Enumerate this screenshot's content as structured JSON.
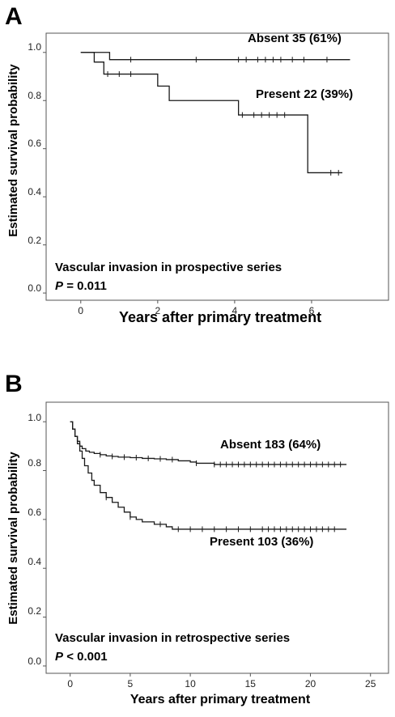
{
  "chart_data": [
    {
      "panel": "A",
      "type": "line",
      "step": true,
      "xlabel": "Years after primary treatment",
      "ylabel": "Estimated survival probability",
      "xlim": [
        -0.9,
        8.0
      ],
      "ylim": [
        -0.03,
        1.08
      ],
      "xticks": [
        0,
        2,
        4,
        6
      ],
      "yticks": [
        0.0,
        0.2,
        0.4,
        0.6,
        0.8,
        1.0
      ],
      "ytick_labels": [
        "0.0",
        "0.2",
        "0.4",
        "0.6",
        "0.8",
        "1.0"
      ],
      "grid": false,
      "annotation": {
        "line1": "Vascular invasion in prospective series",
        "p_label": "P",
        "p_value": "= 0.011"
      },
      "series": [
        {
          "name": "Absent 35 (61%)",
          "x": [
            0,
            0.75,
            0.75,
            7.0
          ],
          "y": [
            1.0,
            1.0,
            0.97,
            0.97
          ],
          "censored_x": [
            1.3,
            3.0,
            4.1,
            4.3,
            4.6,
            4.8,
            5.0,
            5.2,
            5.5,
            5.8,
            6.4
          ]
        },
        {
          "name": "Present 22 (39%)",
          "x": [
            0,
            0.35,
            0.35,
            0.6,
            0.6,
            1.3,
            1.3,
            2.0,
            2.0,
            2.3,
            2.3,
            4.1,
            4.1,
            5.9,
            5.9,
            6.8
          ],
          "y": [
            1.0,
            1.0,
            0.96,
            0.96,
            0.91,
            0.91,
            0.91,
            0.91,
            0.86,
            0.86,
            0.8,
            0.8,
            0.74,
            0.74,
            0.5,
            0.5
          ],
          "censored_x": [
            0.7,
            1.0,
            1.3,
            4.2,
            4.5,
            4.7,
            4.9,
            5.1,
            5.3,
            6.5,
            6.7
          ]
        }
      ]
    },
    {
      "panel": "B",
      "type": "line",
      "step": true,
      "xlabel": "Years after primary treatment",
      "ylabel": "Estimated survival probability",
      "xlim": [
        -2.0,
        26.5
      ],
      "ylim": [
        -0.03,
        1.08
      ],
      "xticks": [
        0,
        5,
        10,
        15,
        20,
        25
      ],
      "yticks": [
        0.0,
        0.2,
        0.4,
        0.6,
        0.8,
        1.0
      ],
      "ytick_labels": [
        "0.0",
        "0.2",
        "0.4",
        "0.6",
        "0.8",
        "1.0"
      ],
      "grid": false,
      "annotation": {
        "line1": "Vascular invasion in retrospective series",
        "p_label": "P",
        "p_value": "< 0.001"
      },
      "series": [
        {
          "name": "Absent 183 (64%)",
          "x": [
            0,
            0.2,
            0.4,
            0.6,
            0.8,
            1.0,
            1.3,
            1.6,
            2.0,
            2.5,
            3.0,
            3.5,
            4.0,
            5.0,
            6.0,
            7.0,
            8.0,
            9.0,
            10.0,
            10.5,
            11.0,
            12.0,
            23.0
          ],
          "y": [
            1.0,
            0.97,
            0.94,
            0.92,
            0.9,
            0.89,
            0.88,
            0.875,
            0.87,
            0.865,
            0.86,
            0.858,
            0.855,
            0.853,
            0.85,
            0.848,
            0.845,
            0.84,
            0.835,
            0.83,
            0.83,
            0.825,
            0.825
          ],
          "censored_x": [
            2.5,
            3.5,
            4.5,
            5.5,
            6.5,
            7.5,
            8.5,
            10.5,
            12.0,
            12.5,
            13.0,
            13.5,
            14.0,
            14.5,
            15.0,
            15.5,
            16.0,
            16.5,
            17.0,
            17.5,
            18.0,
            18.5,
            19.0,
            19.5,
            20.0,
            20.5,
            21.0,
            21.5,
            22.0,
            22.5
          ]
        },
        {
          "name": "Present 103 (36%)",
          "x": [
            0,
            0.2,
            0.4,
            0.6,
            0.8,
            1.0,
            1.2,
            1.5,
            1.8,
            2.0,
            2.5,
            3.0,
            3.5,
            4.0,
            4.5,
            5.0,
            5.5,
            6.0,
            7.0,
            8.0,
            8.5,
            23.0
          ],
          "y": [
            1.0,
            0.97,
            0.94,
            0.91,
            0.88,
            0.85,
            0.82,
            0.79,
            0.76,
            0.74,
            0.71,
            0.69,
            0.67,
            0.65,
            0.63,
            0.61,
            0.6,
            0.59,
            0.58,
            0.57,
            0.56,
            0.56
          ],
          "censored_x": [
            3.0,
            5.0,
            7.5,
            9.0,
            10.0,
            11.0,
            12.0,
            13.0,
            14.0,
            15.0,
            16.0,
            16.5,
            17.0,
            17.5,
            18.0,
            18.5,
            19.0,
            19.5,
            20.0,
            20.5,
            21.0,
            21.5,
            22.0
          ]
        }
      ]
    }
  ]
}
